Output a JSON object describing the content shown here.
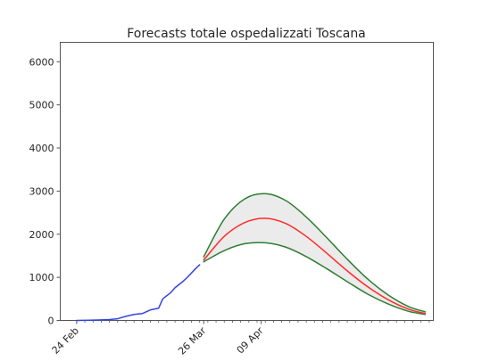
{
  "chart_data": {
    "type": "line",
    "title": "Forecasts totale ospedalizzati Toscana",
    "xlabel": "",
    "ylabel": "",
    "ylim": [
      0,
      6450
    ],
    "yticks": [
      0,
      1000,
      2000,
      3000,
      4000,
      5000,
      6000
    ],
    "ytick_labels": [
      "0",
      "1000",
      "2000",
      "3000",
      "4000",
      "5000",
      "6000"
    ],
    "xlim": [
      "2020-02-20",
      "2020-05-21"
    ],
    "xtick_labels": [
      {
        "date": "2020-02-24",
        "label": "24 Feb"
      },
      {
        "date": "2020-03-26",
        "label": "26 Mar"
      },
      {
        "date": "2020-04-09",
        "label": "09 Apr"
      }
    ],
    "minor_tick_interval_days": 2,
    "grid": false,
    "colors": {
      "observed": "#3344dd",
      "forecast": "#ff2a2a",
      "bounds": "#2e7d32",
      "band": "#ebebeb",
      "band_edge": "#aaaaaa"
    },
    "series": [
      {
        "role": "observed",
        "x": [
          "2020-02-24",
          "2020-02-27",
          "2020-03-01",
          "2020-03-03",
          "2020-03-05",
          "2020-03-07",
          "2020-03-09",
          "2020-03-11",
          "2020-03-13",
          "2020-03-15",
          "2020-03-16",
          "2020-03-18",
          "2020-03-19",
          "2020-03-21",
          "2020-03-22",
          "2020-03-24",
          "2020-03-25"
        ],
        "y": [
          0,
          5,
          12,
          20,
          40,
          95,
          140,
          160,
          245,
          285,
          500,
          650,
          760,
          910,
          1000,
          1200,
          1290
        ]
      },
      {
        "role": "forecast",
        "x": [
          "2020-03-26",
          "2020-03-31",
          "2020-04-05",
          "2020-04-10",
          "2020-04-15",
          "2020-04-20",
          "2020-04-25",
          "2020-04-30",
          "2020-05-05",
          "2020-05-10",
          "2020-05-15",
          "2020-05-19"
        ],
        "y": [
          1400,
          1950,
          2270,
          2370,
          2250,
          1950,
          1560,
          1150,
          780,
          480,
          260,
          160
        ]
      },
      {
        "role": "upper bound",
        "x": [
          "2020-03-26",
          "2020-03-31",
          "2020-04-05",
          "2020-04-10",
          "2020-04-15",
          "2020-04-20",
          "2020-04-25",
          "2020-04-30",
          "2020-05-05",
          "2020-05-10",
          "2020-05-15",
          "2020-05-19"
        ],
        "y": [
          1480,
          2350,
          2820,
          2940,
          2780,
          2400,
          1920,
          1420,
          960,
          590,
          320,
          200
        ]
      },
      {
        "role": "lower bound",
        "x": [
          "2020-03-26",
          "2020-03-31",
          "2020-04-05",
          "2020-04-10",
          "2020-04-15",
          "2020-04-20",
          "2020-04-25",
          "2020-04-30",
          "2020-05-05",
          "2020-05-10",
          "2020-05-15",
          "2020-05-19"
        ],
        "y": [
          1360,
          1620,
          1780,
          1800,
          1700,
          1480,
          1200,
          900,
          610,
          380,
          210,
          140
        ]
      }
    ]
  }
}
